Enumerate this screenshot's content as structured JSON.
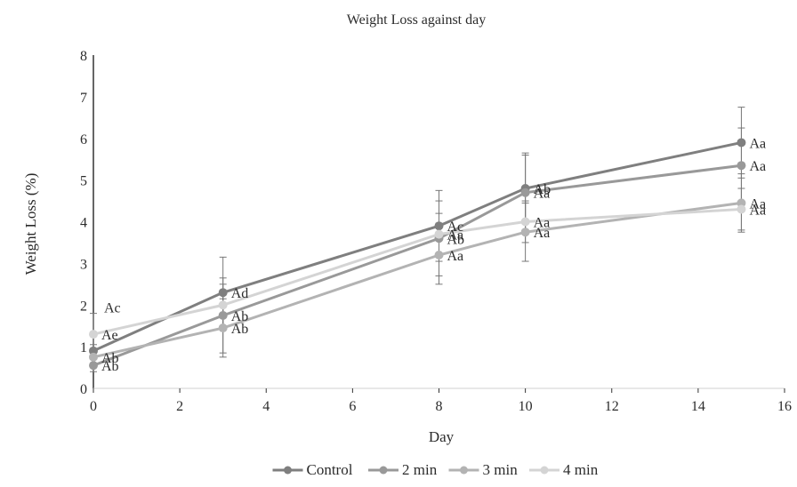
{
  "chart_data": {
    "type": "line",
    "title": "Weight Loss against day",
    "xlabel": "Day",
    "ylabel": "Weight Loss (%)",
    "xlim": [
      0,
      16
    ],
    "ylim": [
      0,
      8
    ],
    "x_ticks": [
      0,
      2,
      4,
      6,
      8,
      10,
      12,
      14,
      16
    ],
    "y_ticks": [
      0,
      1,
      2,
      3,
      4,
      5,
      6,
      7,
      8
    ],
    "grid": false,
    "legend_position": "bottom",
    "x": [
      0,
      3,
      8,
      10,
      15
    ],
    "series": [
      {
        "name": "Control",
        "color": "#7f7f7f",
        "values": [
          0.9,
          2.3,
          3.9,
          4.8,
          5.9
        ],
        "errors": [
          0.15,
          0.85,
          0.85,
          0.85,
          0.85
        ],
        "labels": [
          "",
          "Ad",
          "Ac",
          "Ab",
          "Aa"
        ]
      },
      {
        "name": "2 min",
        "color": "#999999",
        "values": [
          0.55,
          1.75,
          3.6,
          4.7,
          5.35
        ],
        "errors": [
          0.15,
          0.9,
          0.9,
          0.9,
          0.9
        ],
        "labels": [
          "Ab",
          "Ab",
          "Ab",
          "Aa",
          "Aa"
        ]
      },
      {
        "name": "3 min",
        "color": "#b3b3b3",
        "values": [
          0.75,
          1.45,
          3.2,
          3.75,
          4.45
        ],
        "errors": [
          0.15,
          0.7,
          0.7,
          0.7,
          0.7
        ],
        "labels": [
          "Ab",
          "Ab",
          "Aa",
          "Aa",
          "Aa"
        ]
      },
      {
        "name": "4 min",
        "color": "#d4d4d4",
        "values": [
          1.3,
          2.0,
          3.7,
          4.0,
          4.3
        ],
        "errors": [
          0.5,
          0.5,
          0.5,
          0.5,
          0.5
        ],
        "labels": [
          "Ae",
          "",
          "Aa",
          "Aa",
          "Aa"
        ]
      }
    ],
    "annotations": [
      {
        "text": "Ac",
        "x": 0,
        "y": 1.95
      }
    ]
  }
}
